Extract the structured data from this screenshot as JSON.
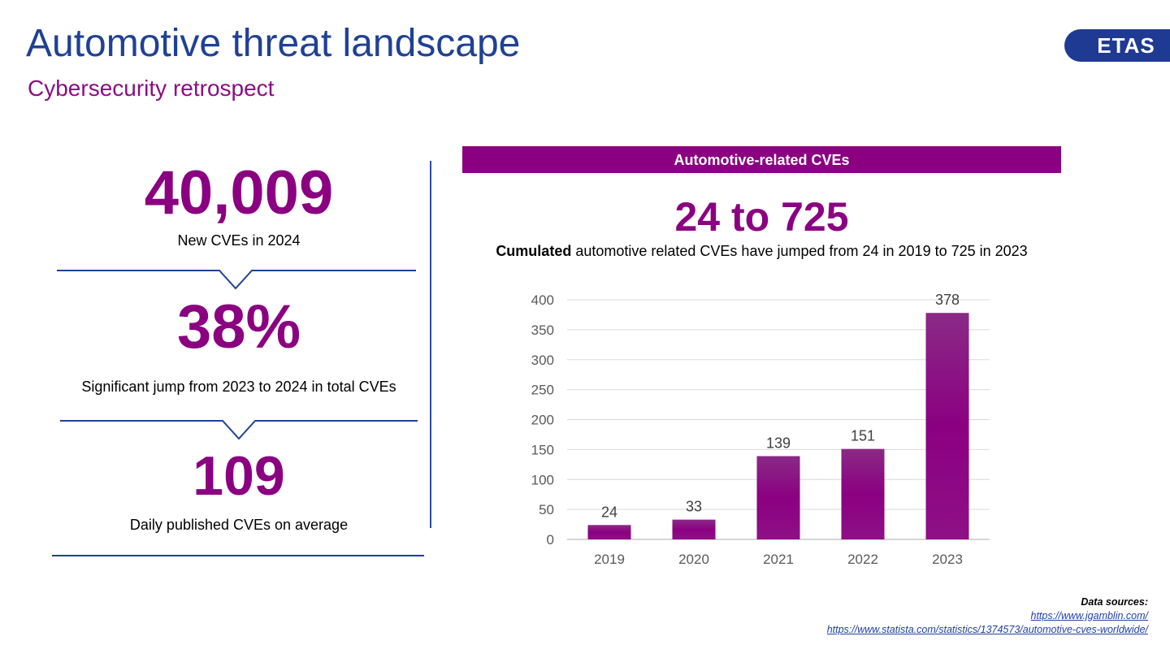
{
  "header": {
    "title": "Automotive threat landscape",
    "subtitle": "Cybersecurity retrospect",
    "logo_text": "ETAS"
  },
  "stats": [
    {
      "value": "40,009",
      "caption": "New CVEs in 2024"
    },
    {
      "value": "38%",
      "caption": "Significant jump from 2023 to 2024 in total CVEs"
    },
    {
      "value": "109",
      "caption": "Daily published CVEs on average"
    }
  ],
  "chart_panel": {
    "header": "Automotive-related CVEs",
    "headline": "24 to 725",
    "description_bold": "Cumulated",
    "description_rest": " automotive related CVEs have jumped from 24 in 2019 to 725 in 2023"
  },
  "chart_data": {
    "type": "bar",
    "categories": [
      "2019",
      "2020",
      "2021",
      "2022",
      "2023"
    ],
    "values": [
      24,
      33,
      139,
      151,
      378
    ],
    "data_labels": [
      "24",
      "33",
      "139",
      "151",
      "378"
    ],
    "yticks": [
      0,
      50,
      100,
      150,
      200,
      250,
      300,
      350,
      400
    ],
    "ylim": [
      0,
      400
    ],
    "grid": true,
    "bar_color": "#8b0081",
    "title": "",
    "xlabel": "",
    "ylabel": ""
  },
  "sources": {
    "label": "Data sources:",
    "links": [
      "https://www.jgamblin.com/",
      "https://www.statista.com/statistics/1374573/automotive-cves-worldwide/"
    ]
  },
  "colors": {
    "brand_blue": "#1f4196",
    "accent_purple": "#8b0081"
  }
}
